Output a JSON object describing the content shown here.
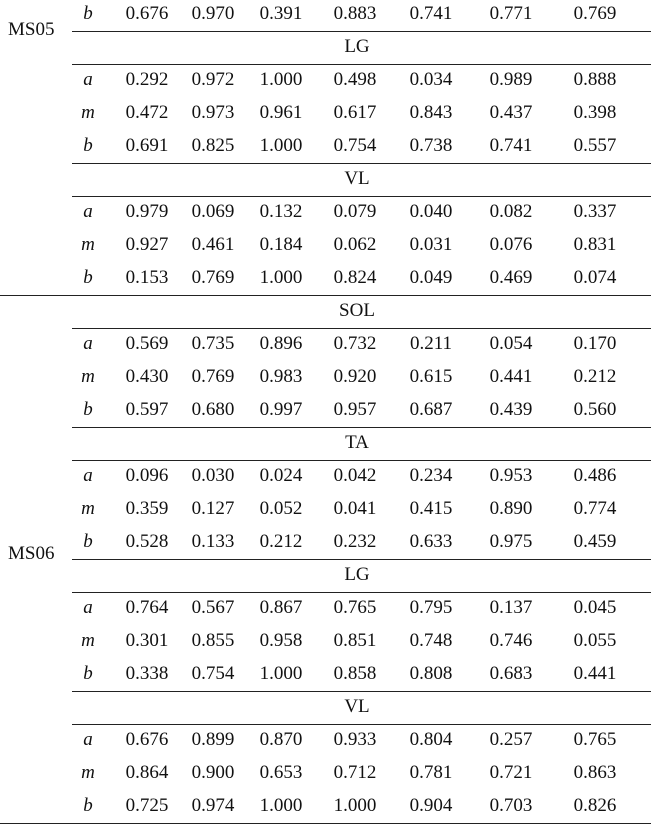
{
  "groups": [
    {
      "name": "MS05",
      "sections": [
        {
          "title": "",
          "rows": [
            {
              "label": "b",
              "values": [
                "0.676",
                "0.970",
                "0.391",
                "0.883",
                "0.741",
                "0.771",
                "0.769"
              ]
            }
          ]
        },
        {
          "title": "LG",
          "rows": [
            {
              "label": "a",
              "values": [
                "0.292",
                "0.972",
                "1.000",
                "0.498",
                "0.034",
                "0.989",
                "0.888"
              ]
            },
            {
              "label": "m",
              "values": [
                "0.472",
                "0.973",
                "0.961",
                "0.617",
                "0.843",
                "0.437",
                "0.398"
              ]
            },
            {
              "label": "b",
              "values": [
                "0.691",
                "0.825",
                "1.000",
                "0.754",
                "0.738",
                "0.741",
                "0.557"
              ]
            }
          ]
        },
        {
          "title": "VL",
          "rows": [
            {
              "label": "a",
              "values": [
                "0.979",
                "0.069",
                "0.132",
                "0.079",
                "0.040",
                "0.082",
                "0.337"
              ]
            },
            {
              "label": "m",
              "values": [
                "0.927",
                "0.461",
                "0.184",
                "0.062",
                "0.031",
                "0.076",
                "0.831"
              ]
            },
            {
              "label": "b",
              "values": [
                "0.153",
                "0.769",
                "1.000",
                "0.824",
                "0.049",
                "0.469",
                "0.074"
              ]
            }
          ]
        }
      ]
    },
    {
      "name": "MS06",
      "sections": [
        {
          "title": "SOL",
          "rows": [
            {
              "label": "a",
              "values": [
                "0.569",
                "0.735",
                "0.896",
                "0.732",
                "0.211",
                "0.054",
                "0.170"
              ]
            },
            {
              "label": "m",
              "values": [
                "0.430",
                "0.769",
                "0.983",
                "0.920",
                "0.615",
                "0.441",
                "0.212"
              ]
            },
            {
              "label": "b",
              "values": [
                "0.597",
                "0.680",
                "0.997",
                "0.957",
                "0.687",
                "0.439",
                "0.560"
              ]
            }
          ]
        },
        {
          "title": "TA",
          "rows": [
            {
              "label": "a",
              "values": [
                "0.096",
                "0.030",
                "0.024",
                "0.042",
                "0.234",
                "0.953",
                "0.486"
              ]
            },
            {
              "label": "m",
              "values": [
                "0.359",
                "0.127",
                "0.052",
                "0.041",
                "0.415",
                "0.890",
                "0.774"
              ]
            },
            {
              "label": "b",
              "values": [
                "0.528",
                "0.133",
                "0.212",
                "0.232",
                "0.633",
                "0.975",
                "0.459"
              ]
            }
          ]
        },
        {
          "title": "LG",
          "rows": [
            {
              "label": "a",
              "values": [
                "0.764",
                "0.567",
                "0.867",
                "0.765",
                "0.795",
                "0.137",
                "0.045"
              ]
            },
            {
              "label": "m",
              "values": [
                "0.301",
                "0.855",
                "0.958",
                "0.851",
                "0.748",
                "0.746",
                "0.055"
              ]
            },
            {
              "label": "b",
              "values": [
                "0.338",
                "0.754",
                "1.000",
                "0.858",
                "0.808",
                "0.683",
                "0.441"
              ]
            }
          ]
        },
        {
          "title": "VL",
          "rows": [
            {
              "label": "a",
              "values": [
                "0.676",
                "0.899",
                "0.870",
                "0.933",
                "0.804",
                "0.257",
                "0.765"
              ]
            },
            {
              "label": "m",
              "values": [
                "0.864",
                "0.900",
                "0.653",
                "0.712",
                "0.781",
                "0.721",
                "0.863"
              ]
            },
            {
              "label": "b",
              "values": [
                "0.725",
                "0.974",
                "1.000",
                "1.000",
                "0.904",
                "0.703",
                "0.826"
              ]
            }
          ]
        }
      ]
    }
  ]
}
